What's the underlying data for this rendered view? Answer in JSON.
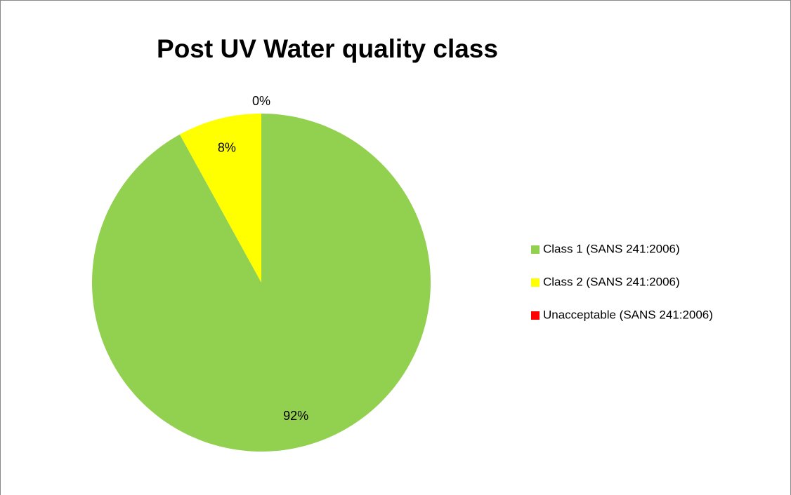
{
  "chart_data": {
    "type": "pie",
    "title": "Post UV Water quality class",
    "categories": [
      "Class 1 (SANS 241:2006)",
      "Class 2 (SANS 241:2006)",
      "Unacceptable (SANS 241:2006)"
    ],
    "values": [
      92,
      8,
      0
    ],
    "value_labels": [
      "92%",
      "8%",
      "0%"
    ],
    "colors": [
      "#92d050",
      "#ffff00",
      "#ff0000"
    ],
    "legend": "right"
  }
}
